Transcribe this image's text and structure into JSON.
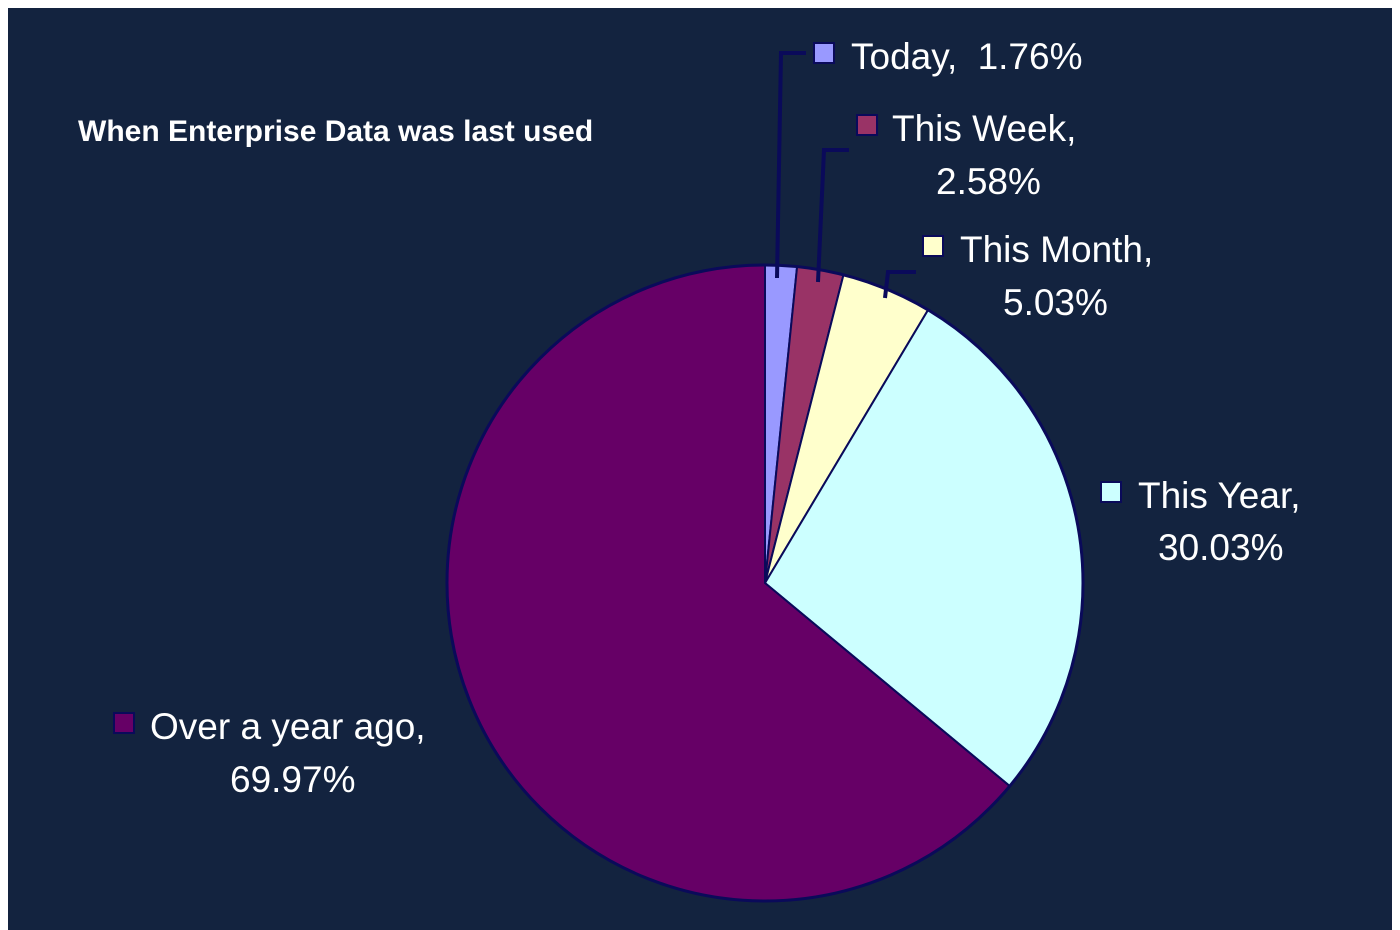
{
  "chart_data": {
    "type": "pie",
    "title": "When Enterprise Data was last used",
    "start_angle_deg": 0,
    "direction": "clockwise",
    "slices": [
      {
        "key": "today",
        "label": "Today,",
        "value_label": "1.76%",
        "value": 1.76,
        "color": "#9999ff"
      },
      {
        "key": "week",
        "label": "This Week,",
        "value_label": "2.58%",
        "value": 2.58,
        "color": "#993366"
      },
      {
        "key": "month",
        "label": "This Month,",
        "value_label": "5.03%",
        "value": 5.03,
        "color": "#ffffcc"
      },
      {
        "key": "year",
        "label": "This Year,",
        "value_label": "30.03%",
        "value": 30.03,
        "color": "#ccffff"
      },
      {
        "key": "over",
        "label": "Over a year ago,",
        "value_label": "69.97%",
        "value": 69.97,
        "color": "#660066"
      }
    ],
    "legend": "labels-with-leader-lines"
  }
}
